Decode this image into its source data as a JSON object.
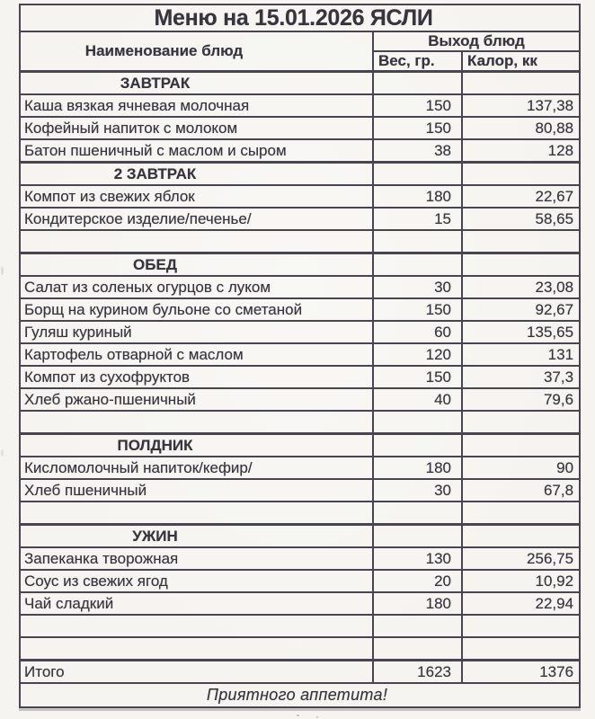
{
  "title": "Меню на 15.01.2026 ЯСЛИ",
  "header": {
    "name_col": "Наименование блюд",
    "output_col": "Выход блюд",
    "weight_col": "Вес, гр.",
    "cal_col": "Калор, кк"
  },
  "rows": [
    {
      "type": "section",
      "name": "ЗАВТРАК"
    },
    {
      "type": "item",
      "name": "Каша вязкая ячневая молочная",
      "weight": "150",
      "cal": "137,38"
    },
    {
      "type": "item",
      "name": "Кофейный напиток с молоком",
      "weight": "150",
      "cal": "80,88"
    },
    {
      "type": "item",
      "name": "Батон пшеничный с маслом и сыром",
      "weight": "38",
      "cal": "128"
    },
    {
      "type": "section",
      "name": "2 ЗАВТРАК"
    },
    {
      "type": "item",
      "name": "Компот из свежих яблок",
      "weight": "180",
      "cal": "22,67"
    },
    {
      "type": "item",
      "name": "Кондитерское изделие/печенье/",
      "weight": "15",
      "cal": "58,65"
    },
    {
      "type": "empty"
    },
    {
      "type": "section",
      "name": "ОБЕД"
    },
    {
      "type": "item",
      "name": "Салат из соленых огурцов с луком",
      "weight": "30",
      "cal": "23,08"
    },
    {
      "type": "item",
      "name": "Борщ на курином бульоне со сметаной",
      "weight": "150",
      "cal": "92,67"
    },
    {
      "type": "item",
      "name": "Гуляш куриный",
      "weight": "60",
      "cal": "135,65"
    },
    {
      "type": "item",
      "name": "Картофель отварной с маслом",
      "weight": "120",
      "cal": "131"
    },
    {
      "type": "item",
      "name": "Компот из сухофруктов",
      "weight": "150",
      "cal": "37,3"
    },
    {
      "type": "item",
      "name": "Хлеб ржано-пшеничный",
      "weight": "40",
      "cal": "79,6"
    },
    {
      "type": "empty"
    },
    {
      "type": "section",
      "name": "ПОЛДНИК"
    },
    {
      "type": "item",
      "name": "Кисломолочный напиток/кефир/",
      "weight": "180",
      "cal": "90"
    },
    {
      "type": "item",
      "name": "Хлеб пшеничный",
      "weight": "30",
      "cal": "67,8"
    },
    {
      "type": "empty"
    },
    {
      "type": "section",
      "name": "УЖИН"
    },
    {
      "type": "item",
      "name": "Запеканка творожная",
      "weight": "130",
      "cal": "256,75"
    },
    {
      "type": "item",
      "name": "Соус из свежих ягод",
      "weight": "20",
      "cal": "10,92"
    },
    {
      "type": "item",
      "name": "Чай сладкий",
      "weight": "180",
      "cal": "22,94"
    },
    {
      "type": "empty"
    },
    {
      "type": "empty"
    }
  ],
  "total": {
    "label": "Итого",
    "weight": "1623",
    "cal": "1376"
  },
  "footer": "Приятного аппетита!",
  "colors": {
    "paper": "#f5f4f0",
    "ink": "#37343d",
    "line": "#4a4450"
  }
}
